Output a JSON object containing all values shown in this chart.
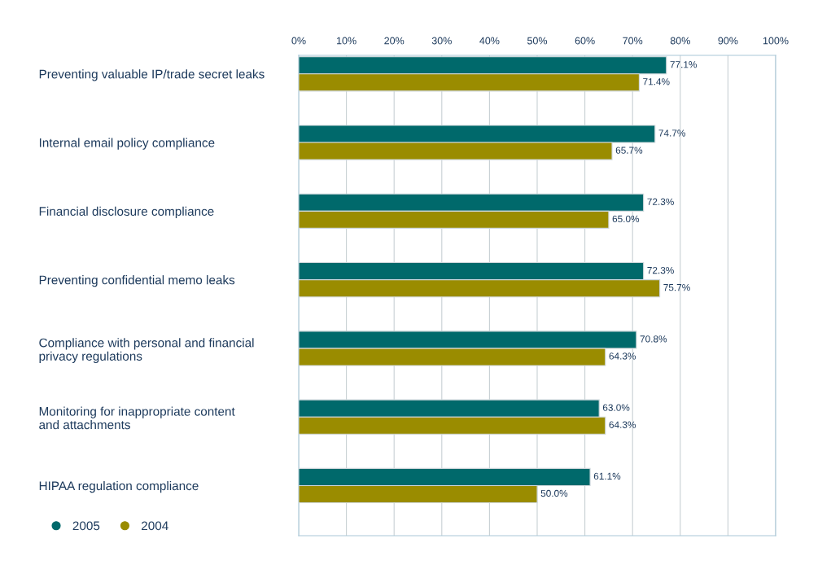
{
  "chart_data": {
    "type": "bar",
    "orientation": "horizontal",
    "categories": [
      "Preventing valuable IP/trade secret leaks",
      "Internal email policy compliance",
      "Financial disclosure compliance",
      "Preventing confidential memo leaks",
      "Compliance with personal and financial\nprivacy regulations",
      "Monitoring for inappropriate content\nand attachments",
      "HIPAA regulation compliance"
    ],
    "series": [
      {
        "name": "2005",
        "color": "#00696b",
        "values": [
          77.1,
          74.7,
          72.3,
          72.3,
          70.8,
          63.0,
          61.1
        ],
        "value_labels": [
          "77.1%",
          "74.7%",
          "72.3%",
          "72.3%",
          "70.8%",
          "63.0%",
          "61.1%"
        ]
      },
      {
        "name": "2004",
        "color": "#9a8c00",
        "values": [
          71.4,
          65.7,
          65.0,
          75.7,
          64.3,
          64.3,
          50.0
        ],
        "value_labels": [
          "71.4%",
          "65.7%",
          "65.0%",
          "75.7%",
          "64.3%",
          "64.3%",
          "50.0%"
        ]
      }
    ],
    "xlim": [
      0,
      100
    ],
    "xticks": [
      {
        "value": 0,
        "label": "0%"
      },
      {
        "value": 10,
        "label": "10%"
      },
      {
        "value": 20,
        "label": "20%"
      },
      {
        "value": 30,
        "label": "30%"
      },
      {
        "value": 40,
        "label": "40%"
      },
      {
        "value": 50,
        "label": "50%"
      },
      {
        "value": 60,
        "label": "60%"
      },
      {
        "value": 70,
        "label": "70%"
      },
      {
        "value": 80,
        "label": "80%"
      },
      {
        "value": 90,
        "label": "90%"
      },
      {
        "value": 100,
        "label": "100%"
      }
    ],
    "grid": "x",
    "legend": "bottom left"
  }
}
